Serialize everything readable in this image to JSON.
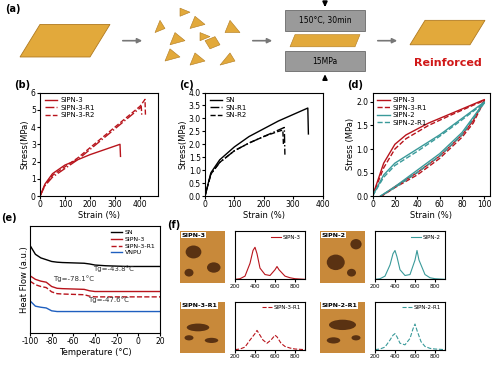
{
  "diagram": {
    "label": "(a)",
    "press_conditions": "150°C, 30min",
    "pressure": "15MPa",
    "result": "Reinforced",
    "afm": {
      "label": "(f)",
      "images": [
        "SIPN-3",
        "SIPN-3-R1",
        "SIPN-2",
        "SIPN-2-R1"
      ]
    }
  },
  "chart_data": [
    {
      "type": "line",
      "title": "(b)",
      "x_label": "Strain (%)",
      "y_label": "Stress(MPa)",
      "xlim": [
        0,
        470
      ],
      "ylim": [
        0,
        6
      ],
      "xticks": [
        0,
        100,
        200,
        300,
        400
      ],
      "yticks": [
        0,
        1,
        2,
        3,
        4,
        5,
        6
      ],
      "legend": "upper left",
      "series": [
        {
          "name": "SIPN-3",
          "color": "#b8141c",
          "line_style": "solid",
          "x": [
            0,
            20,
            50,
            100,
            150,
            200,
            250,
            300,
            320,
            322
          ],
          "values": [
            0,
            0.7,
            1.3,
            1.8,
            2.1,
            2.4,
            2.65,
            2.9,
            3.0,
            2.3
          ]
        },
        {
          "name": "SIPN-3-R1",
          "color": "#b8141c",
          "line_style": "dashdot",
          "x": [
            0,
            20,
            50,
            100,
            150,
            200,
            250,
            300,
            350,
            400,
            405,
            407
          ],
          "values": [
            0,
            0.6,
            1.1,
            1.6,
            2.1,
            2.7,
            3.3,
            3.9,
            4.5,
            5.1,
            5.2,
            4.7
          ]
        },
        {
          "name": "SIPN-3-R2",
          "color": "#b8141c",
          "line_style": "dashed",
          "x": [
            0,
            20,
            50,
            100,
            150,
            200,
            250,
            300,
            350,
            400,
            420,
            422
          ],
          "values": [
            0,
            0.65,
            1.2,
            1.7,
            2.2,
            2.8,
            3.4,
            4.0,
            4.6,
            5.2,
            5.6,
            4.6
          ]
        }
      ]
    },
    {
      "type": "line",
      "title": "(c)",
      "x_label": "Strain (%)",
      "y_label": "Stress(MPa)",
      "xlim": [
        0,
        400
      ],
      "ylim": [
        0,
        4
      ],
      "xticks": [
        0,
        100,
        200,
        300,
        400
      ],
      "yticks": [
        {
          "value": 0,
          "label": "0.0"
        },
        {
          "value": 0.5,
          "label": "0.5"
        },
        {
          "value": 1,
          "label": "1.0"
        },
        {
          "value": 1.5,
          "label": "1.5"
        },
        {
          "value": 2,
          "label": "2.0"
        },
        {
          "value": 2.5,
          "label": "2.5"
        },
        {
          "value": 3,
          "label": "3.0"
        },
        {
          "value": 3.5,
          "label": "3.5"
        },
        {
          "value": 4,
          "label": "4.0"
        }
      ],
      "legend": "upper left",
      "series": [
        {
          "name": "SN",
          "color": "#000000",
          "line_style": "solid",
          "x": [
            0,
            20,
            50,
            100,
            150,
            200,
            250,
            300,
            350,
            352
          ],
          "values": [
            0,
            0.9,
            1.4,
            1.9,
            2.3,
            2.6,
            2.9,
            3.15,
            3.4,
            2.4
          ]
        },
        {
          "name": "SN-R1",
          "color": "#000000",
          "line_style": "dashdot",
          "x": [
            0,
            20,
            50,
            100,
            150,
            200,
            250,
            270,
            272
          ],
          "values": [
            0,
            0.85,
            1.3,
            1.75,
            2.05,
            2.3,
            2.55,
            2.65,
            1.6
          ]
        },
        {
          "name": "SN-R2",
          "color": "#000000",
          "line_style": "dashed",
          "x": [
            0,
            20,
            50,
            100,
            150,
            200,
            250,
            265,
            267
          ],
          "values": [
            0,
            0.85,
            1.3,
            1.75,
            2.05,
            2.3,
            2.5,
            2.55,
            2.0
          ]
        }
      ]
    },
    {
      "type": "line",
      "title": "(d)",
      "x_label": "Strain (%)",
      "y_label": "Stress (MPa)",
      "xlim": [
        0,
        105
      ],
      "ylim": [
        0,
        2.2
      ],
      "xticks": [
        0,
        20,
        40,
        60,
        80,
        100
      ],
      "yticks": [
        {
          "value": 0,
          "label": "0.0"
        },
        {
          "value": 0.5,
          "label": "0.5"
        },
        {
          "value": 1,
          "label": "1.0"
        },
        {
          "value": 1.5,
          "label": "1.5"
        },
        {
          "value": 2,
          "label": "2.0"
        }
      ],
      "legend": "upper left",
      "series": [
        {
          "name": "SIPN-3",
          "color": "#b8141c",
          "line_style": "solid",
          "x": [
            0,
            10,
            20,
            30,
            50,
            70,
            90,
            100,
            90,
            80,
            60,
            40,
            20,
            8
          ],
          "values": [
            0,
            0.7,
            1.1,
            1.3,
            1.55,
            1.75,
            1.95,
            2.05,
            1.6,
            1.3,
            0.85,
            0.5,
            0.2,
            0
          ]
        },
        {
          "name": "SIPN-3-R1",
          "color": "#b8141c",
          "line_style": "dashed",
          "x": [
            0,
            10,
            20,
            30,
            50,
            70,
            90,
            100,
            90,
            80,
            60,
            40,
            20,
            8
          ],
          "values": [
            0,
            0.6,
            1.0,
            1.22,
            1.5,
            1.72,
            1.93,
            2.03,
            1.55,
            1.25,
            0.8,
            0.45,
            0.18,
            0
          ]
        },
        {
          "name": "SIPN-2",
          "color": "#3a9a9a",
          "line_style": "solid",
          "x": [
            0,
            10,
            20,
            40,
            60,
            80,
            100,
            80,
            60,
            40,
            20,
            7
          ],
          "values": [
            0,
            0.45,
            0.7,
            1.0,
            1.3,
            1.65,
            2.0,
            1.35,
            0.9,
            0.55,
            0.2,
            0
          ]
        },
        {
          "name": "SIPN-2-R1",
          "color": "#3a9a9a",
          "line_style": "dashed",
          "x": [
            0,
            10,
            20,
            40,
            60,
            80,
            100,
            80,
            60,
            40,
            20,
            7
          ],
          "values": [
            0,
            0.4,
            0.65,
            0.95,
            1.27,
            1.62,
            1.98,
            1.3,
            0.85,
            0.5,
            0.18,
            0
          ]
        }
      ]
    },
    {
      "type": "line",
      "title": "(e)",
      "x_label": "Temperature (°C)",
      "y_label": "Heat Flow (a.u.)",
      "xlim": [
        -100,
        20
      ],
      "ylim": [
        0,
        3
      ],
      "xticks": [
        -100,
        -80,
        -60,
        -40,
        -20,
        0,
        20
      ],
      "tick_labels": "x",
      "legend": "upper right",
      "annotations": [
        {
          "text": "Tg=-78.1°C",
          "x": -79,
          "y": 1.45
        },
        {
          "text": "Tg=-43.8°C",
          "x": -42,
          "y": 1.72
        },
        {
          "text": "Tg=-47.6°C",
          "x": -46,
          "y": 0.86
        }
      ],
      "series": [
        {
          "name": "SN",
          "color": "#000000",
          "line_style": "solid",
          "x": [
            -100,
            -95,
            -90,
            -85,
            -80,
            -75,
            -70,
            -60,
            -50,
            -45,
            -40,
            -30,
            -20,
            -10,
            0,
            10,
            20
          ],
          "values": [
            2.45,
            2.2,
            2.1,
            2.05,
            2.0,
            1.98,
            1.97,
            1.96,
            1.95,
            1.93,
            1.9,
            1.88,
            1.87,
            1.86,
            1.86,
            1.86,
            1.86
          ]
        },
        {
          "name": "SIPN-3",
          "color": "#b8141c",
          "line_style": "solid",
          "x": [
            -100,
            -95,
            -90,
            -85,
            -80,
            -75,
            -70,
            -60,
            -50,
            -45,
            -40,
            -30,
            -20,
            -10,
            0,
            10,
            20
          ],
          "values": [
            1.6,
            1.5,
            1.45,
            1.42,
            1.3,
            1.25,
            1.24,
            1.23,
            1.22,
            1.18,
            1.16,
            1.16,
            1.16,
            1.16,
            1.16,
            1.16,
            1.16
          ]
        },
        {
          "name": "SIPN-3-R1",
          "color": "#b8141c",
          "line_style": "dashed",
          "x": [
            -100,
            -95,
            -90,
            -85,
            -80,
            -75,
            -70,
            -60,
            -50,
            -45,
            -40,
            -30,
            -20,
            -10,
            0,
            10,
            20
          ],
          "values": [
            1.45,
            1.35,
            1.3,
            1.27,
            1.15,
            1.1,
            1.09,
            1.08,
            1.07,
            1.03,
            1.01,
            1.01,
            1.01,
            1.01,
            1.01,
            1.01,
            1.01
          ]
        },
        {
          "name": "VNPU",
          "color": "#1f5fbf",
          "line_style": "solid",
          "x": [
            -100,
            -95,
            -90,
            -85,
            -80,
            -75,
            -70,
            -60,
            -50,
            -45,
            -40,
            -30,
            -20,
            -10,
            0,
            10,
            20
          ],
          "values": [
            0.9,
            0.75,
            0.72,
            0.7,
            0.62,
            0.6,
            0.6,
            0.6,
            0.6,
            0.6,
            0.6,
            0.6,
            0.6,
            0.6,
            0.6,
            0.6,
            0.6
          ]
        }
      ]
    },
    {
      "type": "line",
      "xlim": [
        200,
        900
      ],
      "ylim": [
        0,
        1.5
      ],
      "xticks": [
        200,
        400,
        600,
        800
      ],
      "tick_labels": "x",
      "legend": "upper right",
      "series": [
        {
          "name": "SIPN-3",
          "color": "#b8141c",
          "line_style": "solid",
          "x": [
            200,
            250,
            300,
            350,
            380,
            400,
            420,
            450,
            500,
            550,
            600,
            620,
            640,
            700,
            750,
            800,
            850,
            900
          ],
          "values": [
            0,
            0.02,
            0.1,
            0.5,
            0.9,
            1.0,
            0.8,
            0.35,
            0.15,
            0.12,
            0.3,
            0.4,
            0.3,
            0.1,
            0.05,
            0.02,
            0.01,
            0
          ]
        }
      ]
    },
    {
      "type": "line",
      "xlim": [
        200,
        900
      ],
      "ylim": [
        0,
        1.5
      ],
      "xticks": [
        200,
        400,
        600,
        800
      ],
      "tick_labels": "x",
      "legend": "upper right",
      "series": [
        {
          "name": "SIPN-2",
          "color": "#3a9a9a",
          "line_style": "solid",
          "x": [
            200,
            250,
            300,
            350,
            380,
            400,
            420,
            450,
            500,
            550,
            600,
            620,
            640,
            700,
            750,
            800,
            850,
            900
          ],
          "values": [
            0,
            0.02,
            0.1,
            0.45,
            0.8,
            0.9,
            0.7,
            0.3,
            0.12,
            0.15,
            0.6,
            0.9,
            0.6,
            0.15,
            0.05,
            0.02,
            0.01,
            0
          ]
        }
      ]
    },
    {
      "type": "line",
      "xlim": [
        200,
        900
      ],
      "ylim": [
        0,
        1.5
      ],
      "xticks": [
        200,
        400,
        600,
        800
      ],
      "tick_labels": "x",
      "legend": "upper right",
      "series": [
        {
          "name": "SIPN-3-R1",
          "color": "#b8141c",
          "line_style": "dashed",
          "x": [
            200,
            250,
            300,
            350,
            400,
            420,
            440,
            480,
            520,
            560,
            600,
            620,
            660,
            700,
            750,
            800,
            850,
            900
          ],
          "values": [
            0,
            0.02,
            0.08,
            0.3,
            0.5,
            0.6,
            0.5,
            0.3,
            0.2,
            0.3,
            0.45,
            0.4,
            0.2,
            0.1,
            0.05,
            0.02,
            0.01,
            0
          ]
        }
      ]
    },
    {
      "type": "line",
      "xlim": [
        200,
        900
      ],
      "ylim": [
        0,
        1.5
      ],
      "xticks": [
        200,
        400,
        600,
        800
      ],
      "tick_labels": "x",
      "legend": "upper right",
      "series": [
        {
          "name": "SIPN-2-R1",
          "color": "#3a9a9a",
          "line_style": "dashed",
          "x": [
            200,
            250,
            300,
            350,
            380,
            400,
            420,
            450,
            500,
            550,
            580,
            600,
            620,
            660,
            700,
            750,
            800,
            900
          ],
          "values": [
            0,
            0.02,
            0.08,
            0.3,
            0.45,
            0.5,
            0.4,
            0.2,
            0.15,
            0.35,
            0.65,
            0.8,
            0.6,
            0.25,
            0.1,
            0.04,
            0.02,
            0
          ]
        }
      ]
    }
  ]
}
